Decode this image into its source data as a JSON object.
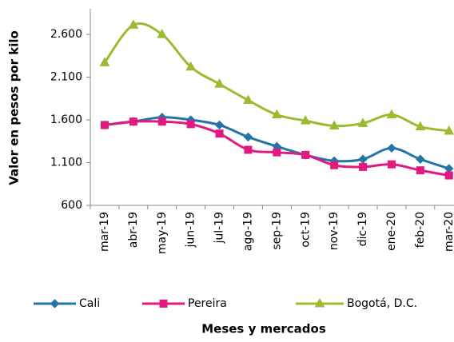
{
  "chart_data": {
    "type": "line",
    "y_label": "Valor en pesos por kilo",
    "x_label": "Meses  y mercados",
    "categories": [
      "mar-19",
      "abr-19",
      "may-19",
      "jun-19",
      "jul-19",
      "ago-19",
      "sep-19",
      "oct-19",
      "nov-19",
      "dic-19",
      "ene-20",
      "feb-20",
      "mar-20"
    ],
    "series": [
      {
        "name": "Cali",
        "color": "#2474a8",
        "marker": "diamond",
        "values": [
          1540,
          1580,
          1630,
          1600,
          1540,
          1400,
          1290,
          1190,
          1120,
          1140,
          1270,
          1140,
          1030
        ]
      },
      {
        "name": "Pereira",
        "color": "#e2197f",
        "marker": "square",
        "values": [
          1540,
          1580,
          1580,
          1550,
          1440,
          1250,
          1220,
          1190,
          1070,
          1050,
          1080,
          1010,
          950
        ]
      },
      {
        "name": "Bogotá, D.C.",
        "color": "#9bbb30",
        "marker": "triangle",
        "values": [
          2270,
          2710,
          2600,
          2220,
          2020,
          1830,
          1660,
          1590,
          1530,
          1560,
          1660,
          1520,
          1470
        ]
      }
    ],
    "ylim": [
      600,
      2900
    ],
    "yticks": [
      600,
      {
        "value": 1100,
        "label": "1.100"
      },
      {
        "value": 1600,
        "label": "1.600"
      },
      {
        "value": 2100,
        "label": "2.100"
      },
      {
        "value": 2600,
        "label": "2.600"
      }
    ],
    "smooth": true,
    "legend": "bottom"
  }
}
